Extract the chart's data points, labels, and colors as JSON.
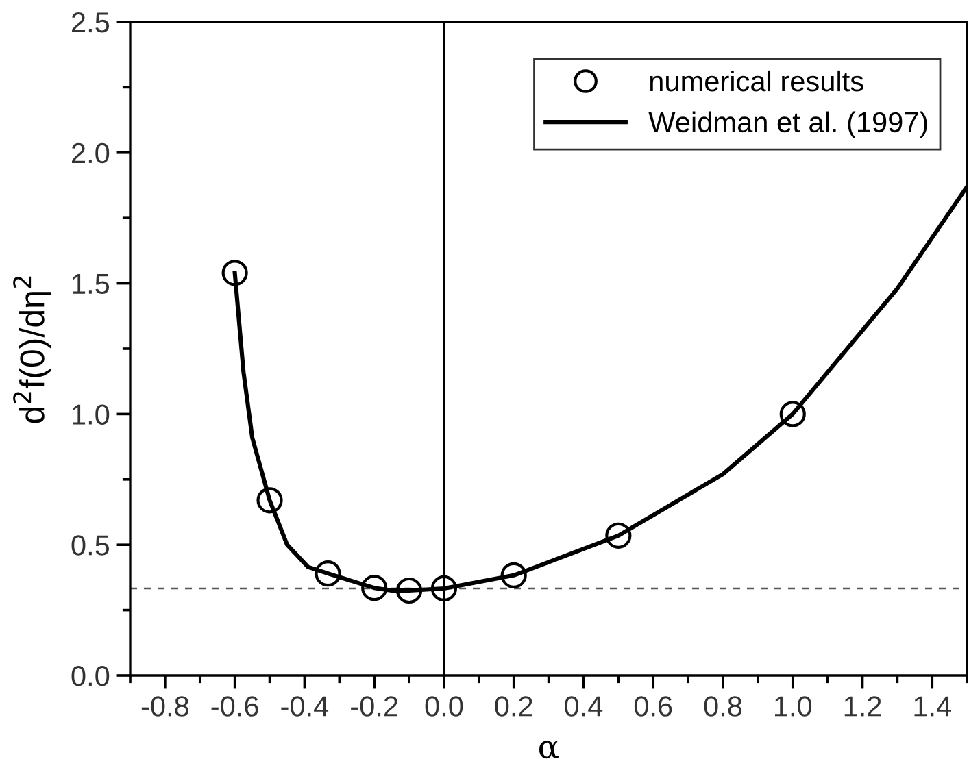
{
  "chart_data": {
    "type": "line",
    "xlabel": "α",
    "ylabel": "d$^{2}$f(0)/dη$^{2}$",
    "xlim": [
      -0.9,
      1.5
    ],
    "ylim": [
      0.0,
      2.5
    ],
    "xticks": [
      {
        "value": -0.8,
        "label": "-0.8"
      },
      {
        "value": -0.6,
        "label": "-0.6"
      },
      {
        "value": -0.4,
        "label": "-0.4"
      },
      {
        "value": -0.2,
        "label": "-0.2"
      },
      {
        "value": 0.0,
        "label": "0.0"
      },
      {
        "value": 0.2,
        "label": "0.2"
      },
      {
        "value": 0.4,
        "label": "0.4"
      },
      {
        "value": 0.6,
        "label": "0.6"
      },
      {
        "value": 0.8,
        "label": "0.8"
      },
      {
        "value": 1.0,
        "label": "1.0"
      },
      {
        "value": 1.2,
        "label": "1.2"
      },
      {
        "value": 1.4,
        "label": "1.4"
      }
    ],
    "yticks": [
      {
        "value": 0.0,
        "label": "0.0"
      },
      {
        "value": 0.5,
        "label": "0.5"
      },
      {
        "value": 1.0,
        "label": "1.0"
      },
      {
        "value": 1.5,
        "label": "1.5"
      },
      {
        "value": 2.0,
        "label": "2.0"
      },
      {
        "value": 2.5,
        "label": "2.5"
      }
    ],
    "series": [
      {
        "name": "numerical results",
        "type": "scatter",
        "marker": "circle",
        "color": "#000000",
        "x": [
          -0.6,
          -0.5,
          -0.333,
          -0.2,
          -0.1,
          0.0,
          0.2,
          0.5,
          1.0
        ],
        "values": [
          1.54,
          0.67,
          0.39,
          0.335,
          0.325,
          0.333,
          0.383,
          0.535,
          1.0
        ]
      },
      {
        "name": "Weidman et al. (1997)",
        "line_style": "solid",
        "color": "#000000",
        "x": [
          -0.6,
          -0.575,
          -0.55,
          -0.5,
          -0.45,
          -0.39,
          -0.333,
          -0.2,
          -0.15,
          -0.1,
          0.0,
          0.2,
          0.5,
          0.8,
          1.0,
          1.3,
          1.5
        ],
        "values": [
          1.54,
          1.16,
          0.91,
          0.67,
          0.5,
          0.415,
          0.39,
          0.335,
          0.325,
          0.325,
          0.333,
          0.383,
          0.535,
          0.77,
          1.0,
          1.48,
          1.87
        ]
      }
    ],
    "ref_lines": [
      {
        "axis": "y",
        "value": 0.333,
        "color": "#555555",
        "line_style": "dashed"
      },
      {
        "axis": "x",
        "value": 0.0,
        "color": "#000000",
        "line_style": "solid"
      }
    ],
    "legend": "top right",
    "grid": false
  }
}
